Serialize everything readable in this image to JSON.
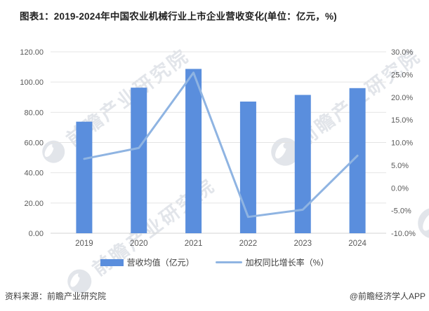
{
  "title": "图表1：2019-2024年中国农业机械行业上市企业营收变化(单位：亿元，%)",
  "watermark_text": "前瞻产业研究院",
  "footer": {
    "source": "资料来源：前瞻产业研究院",
    "brand": "@前瞻经济学人APP"
  },
  "chart_data": {
    "type": "combo",
    "subtype": [
      "bar",
      "line"
    ],
    "categories": [
      "2019",
      "2020",
      "2021",
      "2022",
      "2023",
      "2024"
    ],
    "series": [
      {
        "name": "营收均值（亿元）",
        "type": "bar",
        "axis": "left",
        "unit": "亿元",
        "color": "#5A8EDD",
        "values": [
          73.8,
          96.3,
          108.7,
          87.1,
          91.5,
          96.0
        ]
      },
      {
        "name": "加权同比增长率（%）",
        "type": "line",
        "axis": "right",
        "unit": "%",
        "color": "#8FB4E2",
        "values": [
          6.4,
          8.8,
          25.4,
          -6.4,
          -4.8,
          7.1
        ]
      }
    ],
    "left_axis": {
      "min": 0,
      "max": 120,
      "step": 20,
      "tick_labels": [
        "0.00",
        "20.00",
        "40.00",
        "60.00",
        "80.00",
        "100.00",
        "120.00"
      ]
    },
    "right_axis": {
      "min": -10,
      "max": 30,
      "step": 5,
      "tick_labels": [
        "-10.0%",
        "-5.0%",
        "0.0%",
        "5.0%",
        "10.0%",
        "15.0%",
        "20.0%",
        "25.0%",
        "30.0%"
      ]
    },
    "grid": true,
    "legend_position": "bottom",
    "colors": {
      "gridline": "#e4e4e4",
      "axis_line": "#d6d6d6",
      "tick_text": "#595959",
      "watermark": "#e2e5ea"
    }
  }
}
